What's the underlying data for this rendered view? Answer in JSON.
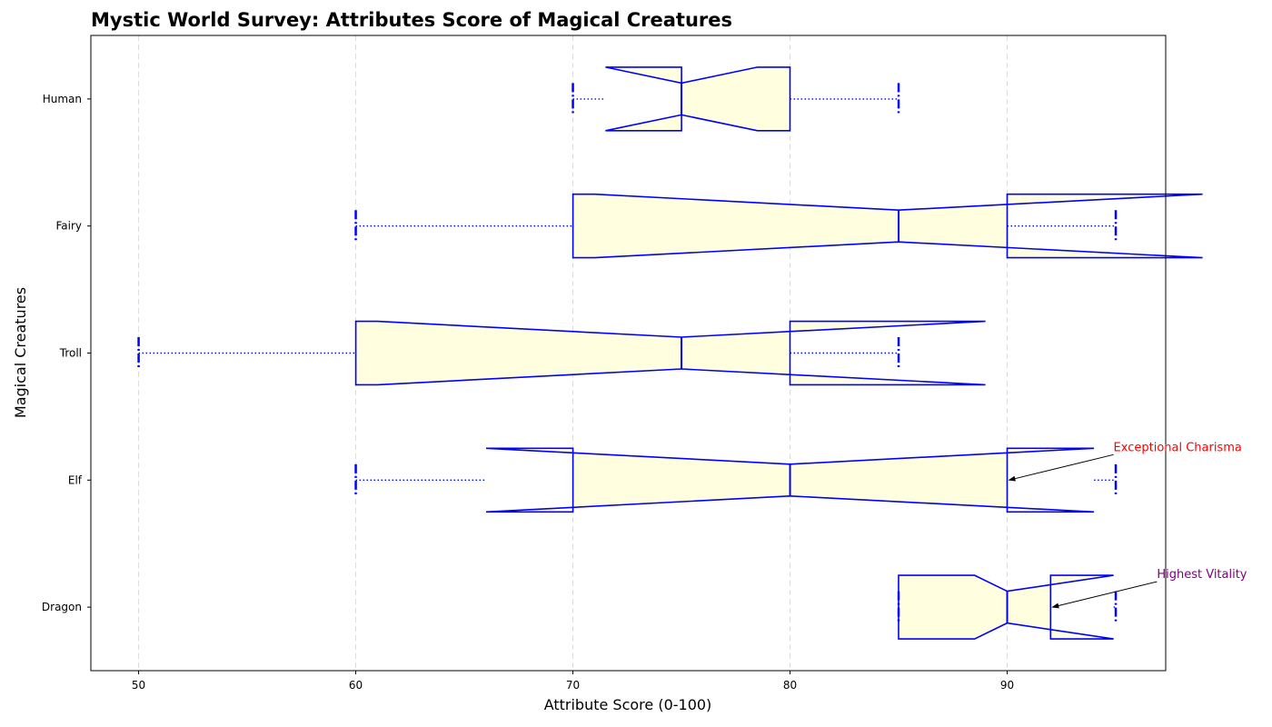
{
  "chart_data": {
    "type": "boxplot",
    "orientation": "horizontal",
    "notched": true,
    "title": "Mystic World Survey: Attributes Score of Magical Creatures",
    "xlabel": "Attribute Score (0-100)",
    "ylabel": "Magical Creatures",
    "xlim": [
      47.8,
      97.3
    ],
    "xticks": [
      50,
      60,
      70,
      80,
      90
    ],
    "grid": "x-dashed",
    "categories": [
      "Dragon",
      "Elf",
      "Troll",
      "Fairy",
      "Human"
    ],
    "boxes": [
      {
        "label": "Dragon",
        "whisker_low": 85,
        "q1": 85,
        "median": 90,
        "q3": 92,
        "whisker_high": 95,
        "notch_low": 88.5,
        "notch_high": 94.9
      },
      {
        "label": "Elf",
        "whisker_low": 60,
        "q1": 70,
        "median": 80,
        "q3": 90,
        "whisker_high": 95,
        "notch_low": 66,
        "notch_high": 94
      },
      {
        "label": "Troll",
        "whisker_low": 50,
        "q1": 60,
        "median": 75,
        "q3": 80,
        "whisker_high": 85,
        "notch_low": 61,
        "notch_high": 89
      },
      {
        "label": "Fairy",
        "whisker_low": 60,
        "q1": 70,
        "median": 85,
        "q3": 90,
        "whisker_high": 95,
        "notch_low": 71,
        "notch_high": 99
      },
      {
        "label": "Human",
        "whisker_low": 70,
        "q1": 75,
        "median": 75,
        "q3": 80,
        "whisker_high": 85,
        "notch_low": 71.5,
        "notch_high": 78.5
      }
    ],
    "annotations": [
      {
        "text": "Exceptional Charisma",
        "category": "Elf",
        "x": 90,
        "color": "#ff0000"
      },
      {
        "text": "Highest Vitality",
        "category": "Dragon",
        "x": 92,
        "color": "#800080"
      }
    ],
    "colors": {
      "box_edge": "#0000ff",
      "box_fill": "#ffffe0",
      "grid": "#d3d3d3",
      "arrow": "#000000"
    }
  }
}
